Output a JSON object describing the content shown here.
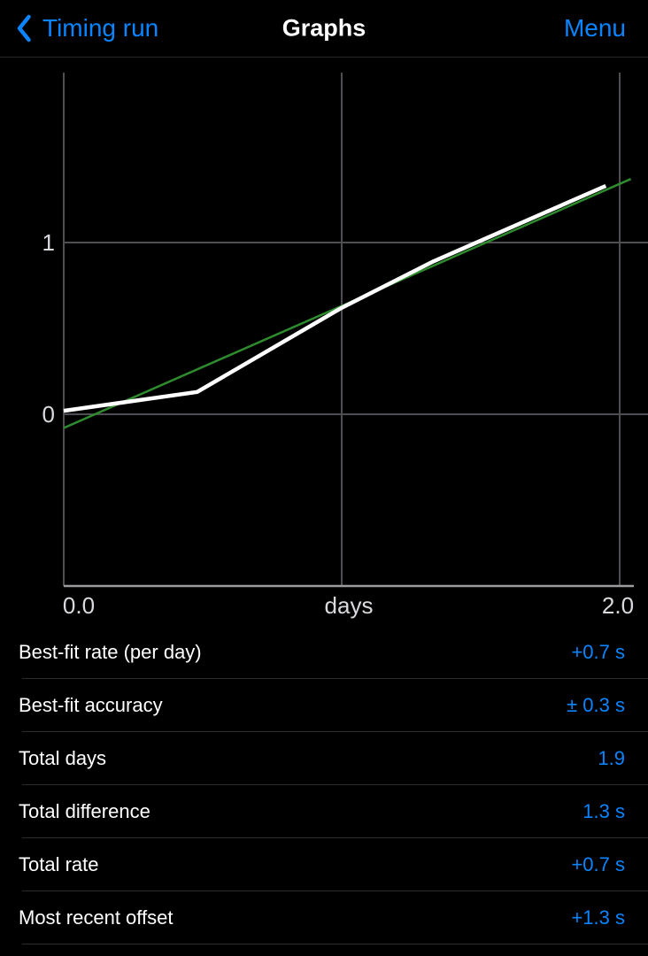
{
  "nav": {
    "back_label": "Timing run",
    "title": "Graphs",
    "menu_label": "Menu",
    "accent_color": "#0a84ff"
  },
  "chart_data": {
    "type": "line",
    "title": "",
    "xlabel": "days",
    "ylabel": "",
    "xlim": [
      0.0,
      2.05
    ],
    "ylim": [
      -1.0,
      2.0
    ],
    "grid": true,
    "legend": "none",
    "grid_color": "#4d4d52",
    "axis_color": "#9b9ba0",
    "tick_color": "#dadade",
    "x_ticks": [
      {
        "pos": 0.0,
        "label": "0.0"
      },
      {
        "pos": 2.0,
        "label": "2.0"
      }
    ],
    "y_ticks": [
      {
        "pos": 0,
        "label": "0"
      },
      {
        "pos": 1,
        "label": "1"
      }
    ],
    "x_gridlines": [
      0.0,
      1.0,
      2.0
    ],
    "y_gridlines": [
      0.0,
      1.0
    ],
    "series": [
      {
        "name": "best-fit line",
        "color": "#2e8b2e",
        "stroke_width": 2.5,
        "points": [
          [
            0.0,
            -0.08
          ],
          [
            2.04,
            1.37
          ]
        ]
      },
      {
        "name": "measured offset",
        "color": "#ffffff",
        "stroke_width": 4.5,
        "points": [
          [
            0.0,
            0.02
          ],
          [
            0.48,
            0.13
          ],
          [
            1.0,
            0.62
          ],
          [
            1.33,
            0.89
          ],
          [
            1.95,
            1.33
          ]
        ]
      }
    ]
  },
  "stats": {
    "rows": [
      {
        "label": "Best-fit rate (per day)",
        "value": "+0.7 s"
      },
      {
        "label": "Best-fit accuracy",
        "value": "± 0.3 s"
      },
      {
        "label": "Total days",
        "value": "1.9"
      },
      {
        "label": "Total difference",
        "value": "1.3 s"
      },
      {
        "label": "Total rate",
        "value": "+0.7 s"
      },
      {
        "label": "Most recent offset",
        "value": "+1.3 s"
      }
    ]
  }
}
